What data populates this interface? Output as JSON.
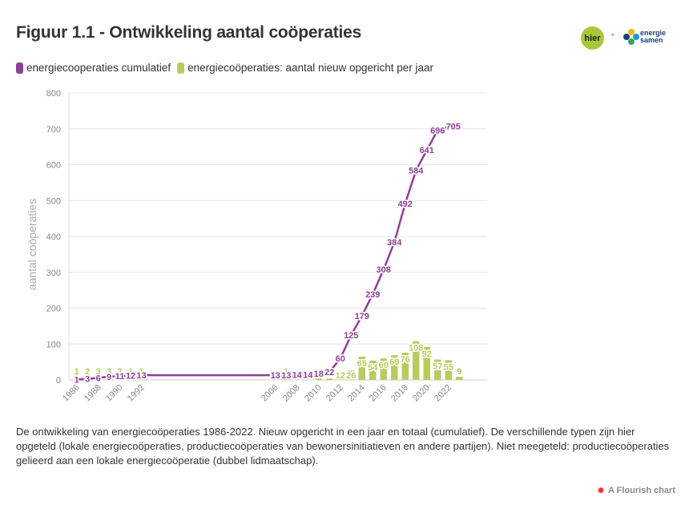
{
  "title": "Figuur 1.1 - Ontwikkeling aantal coöperaties",
  "logos": {
    "hier": "hier",
    "plus": "+",
    "es_line1": "energie",
    "es_line2": "samen"
  },
  "legend": [
    {
      "label": "energiecooperaties cumulatief",
      "color": "#8e3f96"
    },
    {
      "label": "energiecoöperaties: aantal nieuw opgericht per jaar",
      "color": "#b6cd5e"
    }
  ],
  "caption": "De ontwikkeling van energiecoöperaties 1986-2022. Nieuw opgericht in een jaar en totaal (cumulatief). De verschillende typen zijn hier opgeteld (lokale energiecoöperaties, productiecoöperaties van bewonersinitiatieven en andere partijen). Niet meegeteld: productiecoöperaties gelieerd aan een lokale energiecoöperatie (dubbel lidmaatschap).",
  "credit": "A Flourish chart",
  "chart_data": {
    "type": "line",
    "ylabel": "aantal coöperaties",
    "ylim": [
      0,
      800
    ],
    "yticks": [
      0,
      100,
      200,
      300,
      400,
      500,
      600,
      700,
      800
    ],
    "xtick_labels": [
      "1986",
      "1988",
      "1990",
      "1992",
      "2006",
      "2008",
      "2010",
      "2012",
      "2014",
      "2016",
      "2018",
      "2020",
      "2022"
    ],
    "grid": true,
    "legend_position": "top-left",
    "colors": {
      "cumulative": "#8e3f96",
      "new": "#b6cd5e"
    },
    "series": [
      {
        "name": "energiecooperaties cumulatief",
        "type": "line",
        "points": [
          {
            "x": 1986,
            "y": 1
          },
          {
            "x": 1987,
            "y": 3
          },
          {
            "x": 1988,
            "y": 6
          },
          {
            "x": 1989,
            "y": 9
          },
          {
            "x": 1990,
            "y": 11
          },
          {
            "x": 1991,
            "y": 12
          },
          {
            "x": 1992,
            "y": 13
          },
          {
            "x": 2006,
            "y": 13
          },
          {
            "x": 2007,
            "y": 13
          },
          {
            "x": 2008,
            "y": 14
          },
          {
            "x": 2009,
            "y": 14
          },
          {
            "x": 2010,
            "y": 18
          },
          {
            "x": 2011,
            "y": 22
          },
          {
            "x": 2012,
            "y": 60
          },
          {
            "x": 2013,
            "y": 125
          },
          {
            "x": 2014,
            "y": 179
          },
          {
            "x": 2015,
            "y": 239
          },
          {
            "x": 2016,
            "y": 308
          },
          {
            "x": 2017,
            "y": 384
          },
          {
            "x": 2018,
            "y": 492
          },
          {
            "x": 2019,
            "y": 584
          },
          {
            "x": 2020,
            "y": 641
          },
          {
            "x": 2021,
            "y": 696
          },
          {
            "x": 2022,
            "y": 705
          }
        ]
      },
      {
        "name": "energiecoöperaties: aantal nieuw opgericht per jaar",
        "type": "bar",
        "points": [
          {
            "x": 1986,
            "y": 1
          },
          {
            "x": 1987,
            "y": 2
          },
          {
            "x": 1988,
            "y": 3
          },
          {
            "x": 1989,
            "y": 3
          },
          {
            "x": 1990,
            "y": 2
          },
          {
            "x": 1991,
            "y": 1
          },
          {
            "x": 1992,
            "y": 1
          },
          {
            "x": 2007,
            "y": 1
          },
          {
            "x": 2009,
            "y": 0
          },
          {
            "x": 2010,
            "y": 4
          },
          {
            "x": 2011,
            "y": 4
          },
          {
            "x": 2012,
            "y": 12
          },
          {
            "x": 2013,
            "y": 26
          },
          {
            "x": 2014,
            "y": 65
          },
          {
            "x": 2015,
            "y": 54
          },
          {
            "x": 2016,
            "y": 60
          },
          {
            "x": 2017,
            "y": 69
          },
          {
            "x": 2018,
            "y": 76
          },
          {
            "x": 2019,
            "y": 108
          },
          {
            "x": 2020,
            "y": 92
          },
          {
            "x": 2021,
            "y": 57
          },
          {
            "x": 2022,
            "y": 55
          },
          {
            "x": 2023,
            "y": 9
          }
        ]
      }
    ]
  }
}
